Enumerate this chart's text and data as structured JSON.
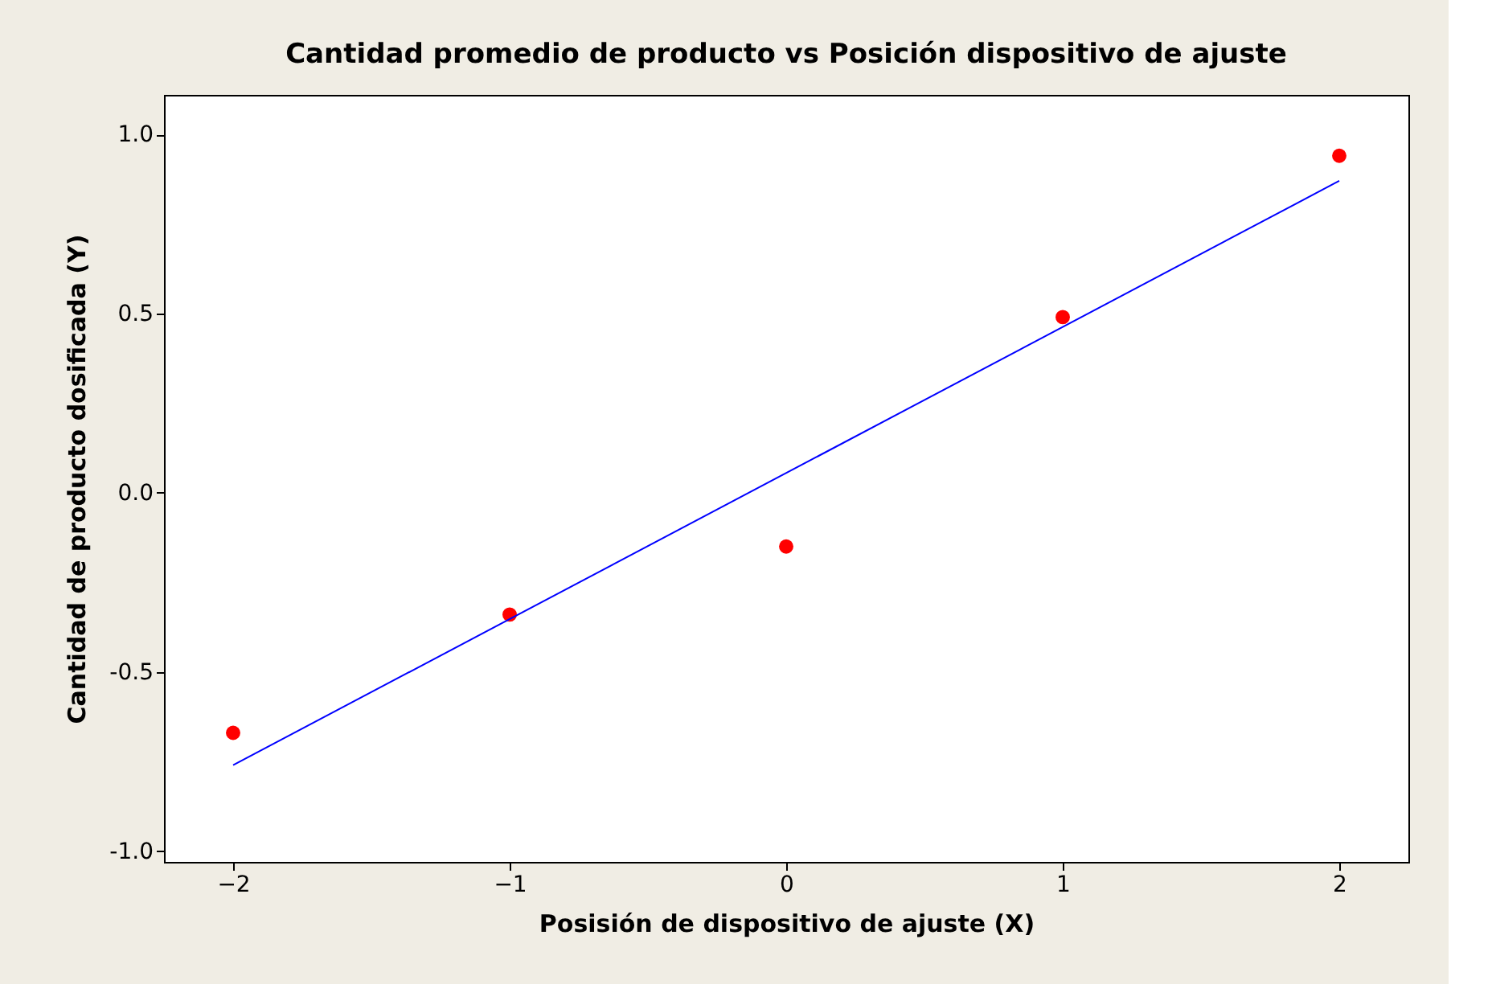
{
  "chart_data": {
    "type": "scatter",
    "title": "Cantidad promedio de producto vs Posición dispositivo de ajuste",
    "xlabel": "Posisión de dispositivo de ajuste (X)",
    "ylabel": "Cantidad de producto dosificada (Y)",
    "x": [
      -2,
      -1,
      0,
      1,
      2
    ],
    "series": [
      {
        "color": "#ff0000",
        "marker": "circle",
        "values": [
          -0.67,
          -0.34,
          -0.15,
          0.49,
          0.94
        ]
      },
      {
        "type": "line",
        "color": "#0000ff",
        "x": [
          -2,
          2
        ],
        "values": [
          -0.76,
          0.87
        ]
      }
    ],
    "xlim": [
      -2.25,
      2.25
    ],
    "ylim": [
      -1.03,
      1.11
    ],
    "xticks": [
      -2,
      -1,
      0,
      1,
      2
    ],
    "yticks": [
      {
        "value": -1,
        "label": "-1.0"
      },
      {
        "value": -0.5,
        "label": "-0.5"
      },
      {
        "value": 0,
        "label": "0.0"
      },
      {
        "value": 0.5,
        "label": "0.5"
      },
      {
        "value": 1,
        "label": "1.0"
      }
    ],
    "grid": false
  }
}
